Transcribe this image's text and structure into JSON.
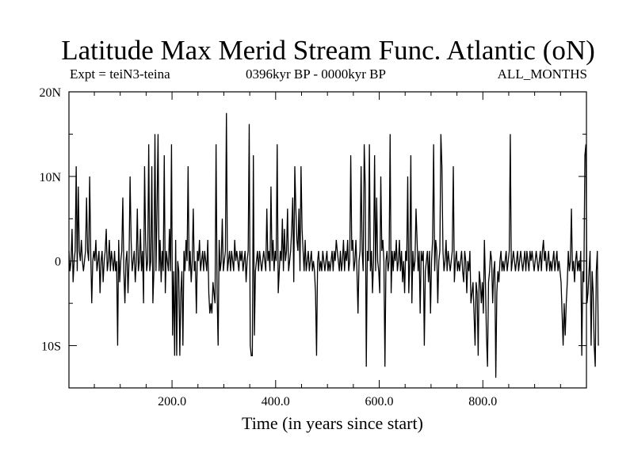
{
  "header": {
    "title": "Latitude Max Merid Stream Func. Atlantic (oN)",
    "expt": "Expt = teiN3-teina",
    "period": "0396kyr BP - 0000kyr BP",
    "months": "ALL_MONTHS"
  },
  "chart_data": {
    "type": "line",
    "title": "Latitude Max Merid Stream Func. Atlantic (oN)",
    "xlabel": "Time (in years since start)",
    "ylabel": "",
    "xlim": [
      1,
      1000
    ],
    "ylim": [
      -15,
      20
    ],
    "x_ticks": [
      200,
      400,
      600,
      800
    ],
    "x_tick_labels": [
      "200.0",
      "400.0",
      "600.0",
      "800.0"
    ],
    "y_ticks": [
      -10,
      0,
      10,
      20
    ],
    "y_tick_labels": [
      "10S",
      "0",
      "10N",
      "20N"
    ],
    "grid": false,
    "line_color": "#000000",
    "series": [
      {
        "values": [
          1.2,
          -1.2,
          0,
          3.8,
          -2.5,
          0,
          1.2,
          11.2,
          -1.2,
          8.8,
          1.2,
          0,
          2.5,
          0,
          -1.2,
          0,
          1.2,
          7.5,
          1.2,
          0,
          10,
          1.2,
          -5,
          0,
          1.2,
          0,
          2.5,
          -1.2,
          0,
          1.2,
          -3.8,
          0,
          1.2,
          -2.5,
          0,
          1.2,
          3.8,
          -1.2,
          0,
          2.5,
          -1.2,
          1.2,
          0,
          -1.2,
          1.2,
          -1.2,
          0,
          -10,
          2.5,
          -2.5,
          0,
          1.2,
          7.5,
          -1.2,
          -5,
          0,
          1.2,
          -3.8,
          0,
          10,
          2.5,
          -1.2,
          0,
          1.2,
          -2.5,
          0,
          6.2,
          -1.2,
          0,
          3.8,
          -1.2,
          1.2,
          -5,
          11.2,
          2.5,
          -1.2,
          0,
          13.8,
          -1.2,
          0,
          11.2,
          -5,
          -1.2,
          15,
          -1.2,
          6.2,
          15,
          -1.2,
          2.5,
          -2.5,
          1.2,
          -1.2,
          12.5,
          -3.8,
          1.2,
          0,
          -1.2,
          3.8,
          -1.2,
          13.8,
          -8.8,
          -1.2,
          -11.2,
          2.5,
          -11.2,
          0,
          -1.2,
          -11.2,
          -3.8,
          -1.2,
          -10,
          1.2,
          -1.2,
          2.5,
          0,
          11.2,
          -1.2,
          1.2,
          -2.5,
          0,
          6.2,
          -1.2,
          0,
          -6.2,
          1.2,
          0,
          2.5,
          -1.2,
          0,
          1.2,
          -1.2,
          1.2,
          0,
          -1.2,
          2.5,
          -3.8,
          -6.2,
          -5,
          -6.2,
          -2.5,
          -3.8,
          -5,
          13.8,
          -3.8,
          -10,
          2.5,
          -1.2,
          0,
          5,
          -1.2,
          0,
          1.2,
          17.5,
          -1.2,
          0,
          1.2,
          -1.2,
          1.2,
          0,
          -1.2,
          2.5,
          0,
          1.2,
          0,
          -1.2,
          1.2,
          0,
          1.2,
          -1.2,
          0,
          1.2,
          -2.5,
          0,
          1.2,
          16.2,
          -10,
          -11.2,
          -11.2,
          12.5,
          -8.8,
          -1.2,
          0,
          1.2,
          -1.2,
          1.2,
          0,
          -1.2,
          0,
          1.2,
          0,
          -1.2,
          6.2,
          0,
          1.2,
          -1.2,
          8.8,
          0,
          2.5,
          -1.2,
          1.2,
          0,
          13.8,
          -3.8,
          -1.2,
          1.2,
          0,
          5,
          -1.2,
          3.8,
          0,
          1.2,
          6.2,
          -1.2,
          0,
          1.2,
          3.8,
          7.5,
          -2.5,
          11.2,
          6.2,
          2.5,
          1.2,
          6.2,
          -1.2,
          11.2,
          3.8,
          1.2,
          -1.2,
          2.5,
          -1.2,
          0,
          1.2,
          -1.2,
          0,
          1.2,
          -1.2,
          0,
          -1.2,
          -3.8,
          -11.2,
          0,
          1.2,
          -1.2,
          0,
          -1.2,
          1.2,
          0,
          -1.2,
          0,
          1.2,
          -1.2,
          0,
          -1.2,
          0,
          1.2,
          -1.2,
          1.2,
          0,
          2.5,
          1.2,
          0,
          -1.2,
          1.2,
          -1.2,
          0,
          2.5,
          -1.2,
          1.2,
          0,
          2.5,
          -1.2,
          0,
          12.5,
          1.2,
          2.5,
          -1.2,
          0,
          2.5,
          -1.2,
          -6.2,
          0,
          1.2,
          11.2,
          1.2,
          -1.2,
          13.8,
          8.8,
          -12.5,
          1.2,
          0,
          13.8,
          -1.2,
          1.2,
          -3.8,
          0,
          12.5,
          -1.2,
          7.5,
          0,
          -1.2,
          -3.8,
          10,
          1.2,
          2.5,
          0,
          -12.5,
          0,
          1.2,
          -1.2,
          0,
          15,
          -3.8,
          1.2,
          -1.2,
          1.2,
          0,
          2.5,
          -1.2,
          0,
          2.5,
          -1.2,
          1.2,
          -2.5,
          0,
          -3.8,
          1.2,
          0,
          10,
          -3.8,
          0,
          12.5,
          -5,
          1.2,
          -1.2,
          0,
          6.2,
          2.5,
          -1.2,
          1.2,
          -6.2,
          1.2,
          0,
          1.2,
          -10,
          -1.2,
          0,
          1.2,
          -2.5,
          1.2,
          -6.2,
          0,
          2.5,
          13.8,
          -1.2,
          2.5,
          1.2,
          -5,
          0,
          1.2,
          15,
          11.2,
          1.2,
          -1.2,
          0,
          2.5,
          -1.2,
          1.2,
          0,
          -1.2,
          0,
          1.2,
          11.2,
          -2.5,
          0,
          1.2,
          -1.2,
          0,
          -1.2,
          0,
          1.2,
          -1.2,
          -2.5,
          1.2,
          0,
          -3.8,
          0,
          -1.2,
          1.2,
          -5,
          -3.8,
          -2.5,
          -6.2,
          -10,
          -2.5,
          -3.8,
          -11.2,
          -1.2,
          -2.5,
          -5,
          -2.5,
          -6.2,
          2.5,
          -2.5,
          -8.8,
          -12.5,
          -2.5,
          -1.2,
          1.2,
          0,
          -5,
          -1.2,
          0,
          -13.8,
          -3.8,
          -1.2,
          -2.5,
          0,
          1.2,
          -1.2,
          0,
          -1.2,
          0,
          1.2,
          -1.2,
          0,
          1.2,
          15,
          -1.2,
          0,
          1.2,
          0,
          -1.2,
          0,
          1.2,
          -1.2,
          0,
          1.2,
          0,
          -1.2,
          0,
          1.2,
          -1.2,
          1.2,
          0,
          -1.2,
          1.2,
          0,
          1.2,
          0,
          -1.2,
          0,
          1.2,
          0,
          -1.2,
          0,
          1.2,
          -1.2,
          1.2,
          2.5,
          0,
          1.2,
          -1.2,
          0,
          1.2,
          -1.2,
          0,
          -1.2,
          0,
          1.2,
          -1.2,
          0,
          1.2,
          -1.2,
          0,
          -1.2,
          -2.5,
          -6.2,
          -10,
          -5,
          -8.8,
          -5,
          -2.5,
          1.2,
          -1.2,
          0,
          6.2,
          -1.2,
          0,
          -2.5,
          0,
          1.2,
          -1.2,
          0,
          -1.2,
          1.2,
          -11.2,
          -1.2,
          -2.5,
          12.5,
          13.8,
          -5,
          -3.8,
          -1.2,
          1.2,
          -10,
          -1.2,
          -3.8,
          -10,
          -12.5,
          -1.2,
          1.2,
          -10
        ],
        "x_start": 1,
        "x_step": 2
      }
    ]
  }
}
